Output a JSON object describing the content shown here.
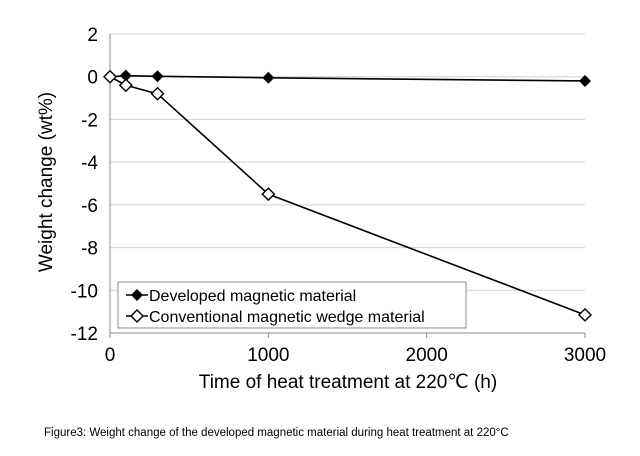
{
  "caption": "Figure3: Weight change of the developed magnetic material during heat treatment at 220°C",
  "chart_data": {
    "type": "line",
    "title": "",
    "xlabel": "Time of heat treatment at 220℃ (h)",
    "ylabel": "Weight change (wt%)",
    "xlim": [
      0,
      3000
    ],
    "ylim": [
      -12,
      2
    ],
    "xticks": [
      0,
      1000,
      2000,
      3000
    ],
    "yticks": [
      2,
      0,
      -2,
      -4,
      -6,
      -8,
      -10,
      -12
    ],
    "grid": "horizontal",
    "legend": "bottom-left",
    "series": [
      {
        "name": "Developed magnetic material",
        "marker": "filled-diamond",
        "color": "#000000",
        "x": [
          0,
          100,
          300,
          1000,
          3000
        ],
        "y": [
          0.0,
          0.05,
          0.02,
          -0.05,
          -0.2
        ]
      },
      {
        "name": "Conventional magnetic wedge material",
        "marker": "open-diamond",
        "color": "#000000",
        "x": [
          0,
          100,
          300,
          1000,
          3000
        ],
        "y": [
          0.0,
          -0.4,
          -0.8,
          -5.5,
          -11.15
        ]
      }
    ]
  }
}
